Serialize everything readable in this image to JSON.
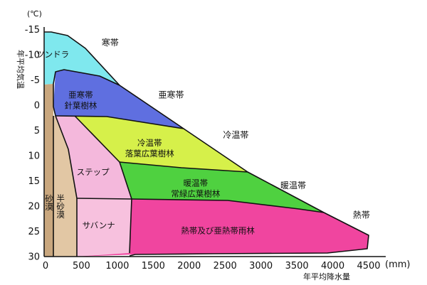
{
  "colors": {
    "tundra": "#7fe8ee",
    "subarctic": "#5f6fe0",
    "cool": "#d6f04a",
    "warm": "#4fd140",
    "tropical": "#f0459f",
    "steppe": "#f4b8dc",
    "savanna": "#f7c1de",
    "semi_desert": "#e2c7a4",
    "desert": "#c9a77e",
    "outline": "#111111"
  },
  "chart_data": {
    "type": "diagram",
    "y_unit": "(℃)",
    "y_axis_title": "年平均気温",
    "x_unit": "(mm)",
    "x_axis_title": "年平均降水量",
    "x_ticks": [
      0,
      500,
      1000,
      1500,
      2000,
      2500,
      3000,
      3500,
      4000,
      4500
    ],
    "y_ticks": [
      -15,
      -10,
      -5,
      0,
      5,
      10,
      15,
      20,
      25,
      30
    ],
    "xlim": [
      0,
      4700
    ],
    "ylim": [
      30,
      -17
    ],
    "climate_labels": [
      {
        "text": "寒帯",
        "x": 900,
        "y": -11.8
      },
      {
        "text": "亜寒帯",
        "x": 1750,
        "y": -1.5
      },
      {
        "text": "冷温帯",
        "x": 2650,
        "y": 6.5
      },
      {
        "text": "暖温帯",
        "x": 3450,
        "y": 16.5
      },
      {
        "text": "熱帯",
        "x": 4400,
        "y": 22.3
      }
    ],
    "biomes": [
      {
        "name": "ツンドラ",
        "x": 100,
        "y": -9.5
      },
      {
        "name": "亜寒帯",
        "line2": "針葉樹林",
        "x": 490,
        "y": -1.5
      },
      {
        "name": "冷温帯",
        "line2": "落葉広葉樹林",
        "x": 1450,
        "y": 8
      },
      {
        "name": "暖温帯",
        "line2": "常緑広葉樹林",
        "x": 2090,
        "y": 16
      },
      {
        "name": "熱帯及び亜熱帯雨林",
        "x": 2400,
        "y": 25.4
      },
      {
        "name": "ステップ",
        "x": 660,
        "y": 13.8
      },
      {
        "name": "サバンナ",
        "x": 740,
        "y": 24.4
      },
      {
        "name": "半砂漠",
        "x": 210,
        "y": 20
      }
    ],
    "desert_label": "砂漠"
  }
}
